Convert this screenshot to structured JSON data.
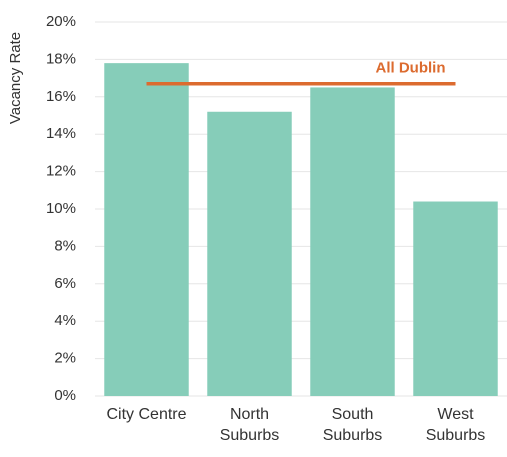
{
  "chart_data": {
    "type": "bar",
    "y_label": "Vacancy Rate",
    "categories": [
      "City Centre",
      "North Suburbs",
      "South Suburbs",
      "West Suburbs"
    ],
    "values": [
      17.8,
      15.2,
      16.5,
      10.4
    ],
    "color": "#86cdb9",
    "reference_line": {
      "name": "All Dublin",
      "value": 16.7,
      "color": "#dc6b2f"
    },
    "ylim": [
      0,
      20
    ],
    "yticks": [
      {
        "value": 0,
        "label": "0%"
      },
      {
        "value": 2,
        "label": "2%"
      },
      {
        "value": 4,
        "label": "4%"
      },
      {
        "value": 6,
        "label": "6%"
      },
      {
        "value": 8,
        "label": "8%"
      },
      {
        "value": 10,
        "label": "10%"
      },
      {
        "value": 12,
        "label": "12%"
      },
      {
        "value": 14,
        "label": "14%"
      },
      {
        "value": 16,
        "label": "16%"
      },
      {
        "value": 18,
        "label": "18%"
      },
      {
        "value": 20,
        "label": "20%"
      }
    ],
    "grid": true
  }
}
